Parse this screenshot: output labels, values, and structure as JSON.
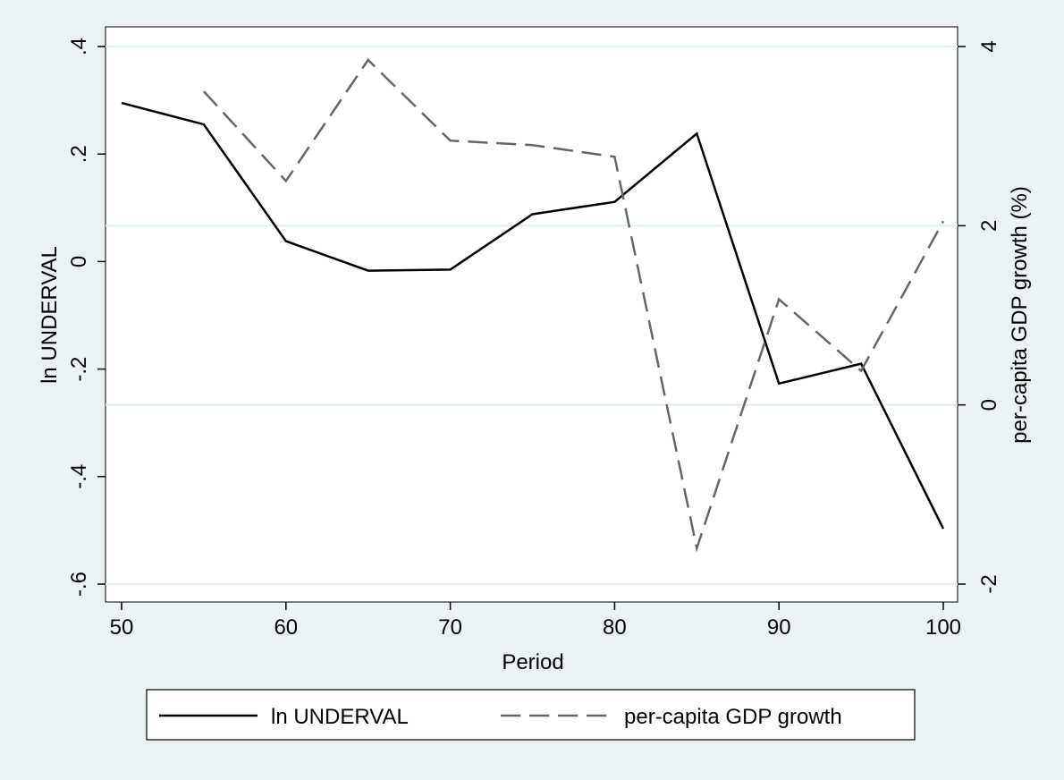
{
  "chart_data": {
    "type": "line",
    "xlabel": "Period",
    "ylabel_left": "ln UNDERVAL",
    "ylabel_right": "per-capita GDP growth (%)",
    "x_ticks": [
      "50",
      "60",
      "70",
      "80",
      "90",
      "100"
    ],
    "y_left_ticks": [
      "-.6",
      "-.4",
      "-.2",
      "0",
      ".2",
      ".4"
    ],
    "y_right_ticks": [
      "-2",
      "0",
      "2",
      "4"
    ],
    "xlim": [
      50,
      100
    ],
    "ylim_left": [
      -0.6,
      0.4
    ],
    "ylim_right": [
      -2,
      4
    ],
    "grid": true,
    "legend_position": "bottom",
    "series": [
      {
        "name": "ln UNDERVAL",
        "axis": "left",
        "style": "solid",
        "color": "#000000",
        "x": [
          50,
          55,
          60,
          65,
          70,
          75,
          80,
          85,
          90,
          95,
          100
        ],
        "values": [
          0.295,
          0.255,
          0.038,
          -0.017,
          -0.015,
          0.088,
          0.111,
          0.238,
          -0.227,
          -0.19,
          -0.497
        ]
      },
      {
        "name": "per-capita GDP growth",
        "axis": "right",
        "style": "dashed",
        "color": "#666666",
        "x": [
          55,
          60,
          65,
          70,
          75,
          80,
          85,
          90,
          95,
          100
        ],
        "values": [
          3.5,
          2.5,
          3.85,
          2.95,
          2.9,
          2.77,
          -1.6,
          1.18,
          0.38,
          2.05
        ]
      }
    ]
  }
}
